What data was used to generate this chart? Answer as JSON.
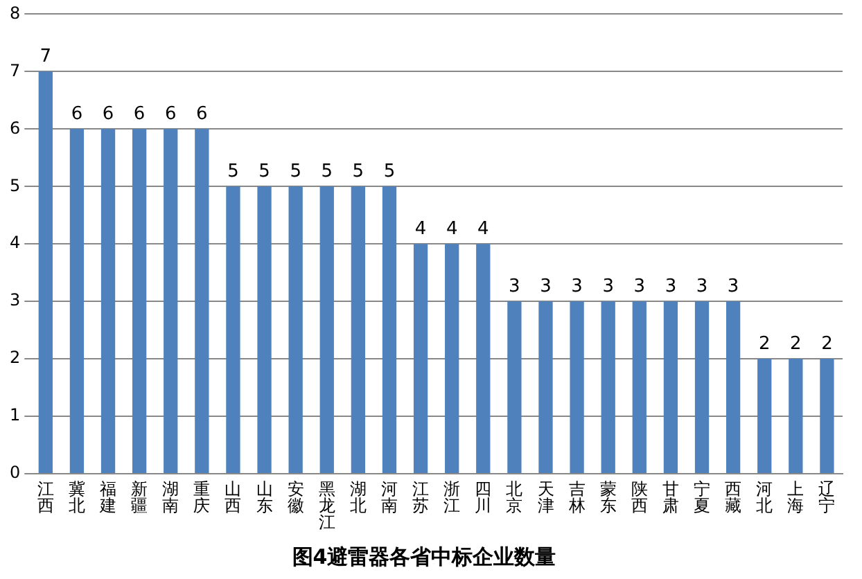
{
  "chart_data": {
    "type": "bar",
    "title": "图4避雷器各省中标企业数量",
    "categories": [
      "江西",
      "冀北",
      "福建",
      "新疆",
      "湖南",
      "重庆",
      "山西",
      "山东",
      "安徽",
      "黑龙江",
      "湖北",
      "河南",
      "江苏",
      "浙江",
      "四川",
      "北京",
      "天津",
      "吉林",
      "蒙东",
      "陕西",
      "甘肃",
      "宁夏",
      "西藏",
      "河北",
      "上海",
      "辽宁"
    ],
    "values": [
      7,
      6,
      6,
      6,
      6,
      6,
      5,
      5,
      5,
      5,
      5,
      5,
      4,
      4,
      4,
      3,
      3,
      3,
      3,
      3,
      3,
      3,
      3,
      2,
      2,
      2
    ],
    "color": "#4f81bd",
    "ylim": [
      0,
      8
    ],
    "yticks": [
      0,
      1,
      2,
      3,
      4,
      5,
      6,
      7,
      8
    ],
    "grid": "y",
    "data_labels": true
  }
}
